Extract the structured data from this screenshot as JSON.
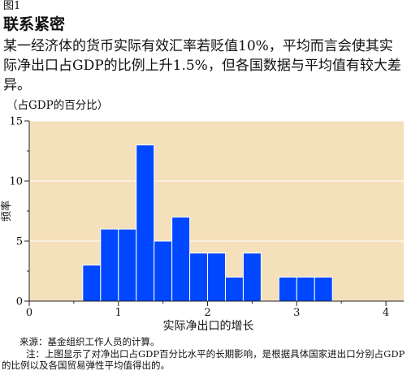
{
  "figure_label": "图1",
  "title": "联系紧密",
  "subtitle": "某一经济体的货币实际有效汇率若贬值10%，平均而言会使其实际净出口占GDP的比例上升1.5%，但各国数据与平均值有较大差异。",
  "unit_label": "（占GDP的百分比）",
  "source": "来源：基金组织工作人员的计算。",
  "note": "注：上图显示了对净出口占GDP百分比水平的长期影响，是根据具体国家进出口分别占GDP的比例以及各国贸易弹性平均值得出的。",
  "colors": {
    "plot_background": "#f5e0bc",
    "bar": "#0047ff",
    "bar_edge": "#ffffff",
    "gridline": "#ffffff"
  },
  "chart_data": {
    "type": "bar",
    "subtype": "histogram",
    "title": "",
    "xlabel": "实际净出口的增长",
    "ylabel": "频率",
    "xlim": [
      0,
      4.2
    ],
    "ylim": [
      0,
      15
    ],
    "xticks": [
      0,
      1,
      2,
      3,
      4
    ],
    "yticks": [
      0,
      5,
      10,
      15
    ],
    "grid": "horizontal",
    "bin_width": 0.2,
    "bins": [
      {
        "start": 0.6,
        "end": 0.8,
        "count": 3
      },
      {
        "start": 0.8,
        "end": 1.0,
        "count": 6
      },
      {
        "start": 1.0,
        "end": 1.2,
        "count": 6
      },
      {
        "start": 1.2,
        "end": 1.4,
        "count": 13
      },
      {
        "start": 1.4,
        "end": 1.6,
        "count": 5
      },
      {
        "start": 1.6,
        "end": 1.8,
        "count": 7
      },
      {
        "start": 1.8,
        "end": 2.0,
        "count": 4
      },
      {
        "start": 2.0,
        "end": 2.2,
        "count": 4
      },
      {
        "start": 2.2,
        "end": 2.4,
        "count": 2
      },
      {
        "start": 2.4,
        "end": 2.6,
        "count": 4
      },
      {
        "start": 2.8,
        "end": 3.0,
        "count": 2
      },
      {
        "start": 3.0,
        "end": 3.2,
        "count": 2
      },
      {
        "start": 3.2,
        "end": 3.4,
        "count": 2
      }
    ]
  }
}
